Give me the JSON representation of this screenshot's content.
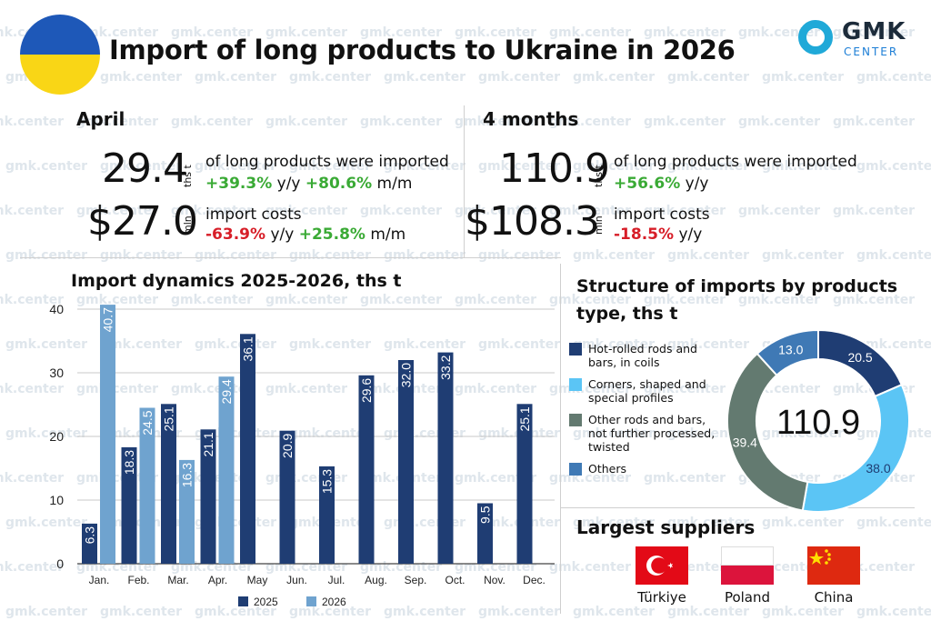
{
  "header": {
    "title": "Import of long products to Ukraine in 2026",
    "logo_main": "GMK",
    "logo_sub": "CENTER"
  },
  "watermark_text": "gmk.center",
  "april": {
    "heading": "April",
    "volume_value": "29.4",
    "volume_unit": "ths t",
    "volume_desc": "of long products were imported",
    "volume_yy": "+39.3%",
    "yy_label": "y/y",
    "volume_mm": "+80.6%",
    "mm_label": "m/m",
    "cost_value": "$27.0",
    "cost_unit": "mln",
    "cost_desc": "import costs",
    "cost_yy": "-63.9%",
    "cost_mm": "+25.8%"
  },
  "four_months": {
    "heading": "4 months",
    "volume_value": "110.9",
    "volume_unit": "ths t",
    "volume_desc": "of long products were imported",
    "volume_yy": "+56.6%",
    "yy_label": "y/y",
    "cost_value": "$108.3",
    "cost_unit": "mln",
    "cost_desc": "import costs",
    "cost_yy": "-18.5%"
  },
  "colors": {
    "series_2025": "#1f3d73",
    "series_2026": "#6fa3cf",
    "positive": "#3aaa35",
    "negative": "#d71e28"
  },
  "chart_data": [
    {
      "type": "bar",
      "title": "Import dynamics 2025-2026, ths t",
      "categories": [
        "Jan.",
        "Feb.",
        "Mar.",
        "Apr.",
        "May",
        "Jun.",
        "Jul.",
        "Aug.",
        "Sep.",
        "Oct.",
        "Nov.",
        "Dec."
      ],
      "series": [
        {
          "name": "2025",
          "color": "#1f3d73",
          "values": [
            6.3,
            18.3,
            25.1,
            21.1,
            36.1,
            20.9,
            15.3,
            29.6,
            32.0,
            33.2,
            9.5,
            25.1
          ]
        },
        {
          "name": "2026",
          "color": "#6fa3cf",
          "values": [
            40.7,
            24.5,
            16.3,
            29.4,
            null,
            null,
            null,
            null,
            null,
            null,
            null,
            null
          ]
        }
      ],
      "ylim": [
        0,
        40
      ],
      "yticks": [
        0,
        10,
        20,
        30,
        40
      ],
      "grid": true,
      "legend": "bottom"
    },
    {
      "type": "pie",
      "title": "Structure of imports by products type, ths t",
      "center_label": "110.9",
      "slices": [
        {
          "label": "Hot-rolled rods and bars, in coils",
          "value": 20.5,
          "color": "#1f3d73"
        },
        {
          "label": "Corners, shaped and special profiles",
          "value": 38.0,
          "color": "#5bc5f5"
        },
        {
          "label": "Other rods and bars, not further processed, twisted",
          "value": 39.4,
          "color": "#637a70"
        },
        {
          "label": "Others",
          "value": 13.0,
          "color": "#3f79b5"
        }
      ],
      "legend": "left"
    }
  ],
  "suppliers": {
    "heading": "Largest suppliers",
    "countries": [
      "Türkiye",
      "Poland",
      "China"
    ]
  }
}
